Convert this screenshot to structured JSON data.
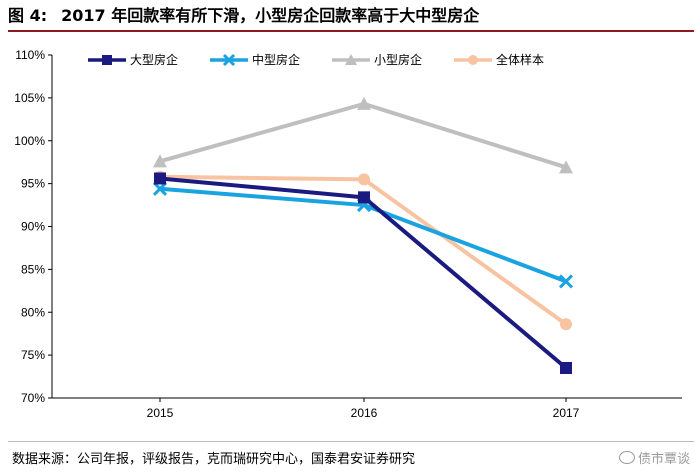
{
  "figure": {
    "label": "图 4:",
    "title": "2017 年回款率有所下滑，小型房企回款率高于大中型房企"
  },
  "source": "数据来源：公司年报，评级报告，克而瑞研究中心，国泰君安证券研究",
  "watermark": "债市覃谈",
  "chart_data": {
    "type": "line",
    "title": "",
    "xlabel": "",
    "ylabel": "",
    "x": [
      "2015",
      "2016",
      "2017"
    ],
    "ylim": [
      70,
      110
    ],
    "yticks": [
      70,
      75,
      80,
      85,
      90,
      95,
      100,
      105,
      110
    ],
    "ytick_labels": [
      "70%",
      "75%",
      "80%",
      "85%",
      "90%",
      "95%",
      "100%",
      "105%",
      "110%"
    ],
    "grid": false,
    "legend_position": "top",
    "series": [
      {
        "name": "大型房企",
        "values": [
          95.6,
          93.4,
          73.5
        ],
        "color": "#1a1a80",
        "marker": "square"
      },
      {
        "name": "中型房企",
        "values": [
          94.4,
          92.5,
          83.6
        ],
        "color": "#1aa3e0",
        "marker": "x"
      },
      {
        "name": "小型房企",
        "values": [
          97.6,
          104.3,
          96.9
        ],
        "color": "#bfbfbf",
        "marker": "triangle"
      },
      {
        "name": "全体样本",
        "values": [
          95.8,
          95.5,
          78.6
        ],
        "color": "#f8c3a0",
        "marker": "circle"
      }
    ]
  }
}
